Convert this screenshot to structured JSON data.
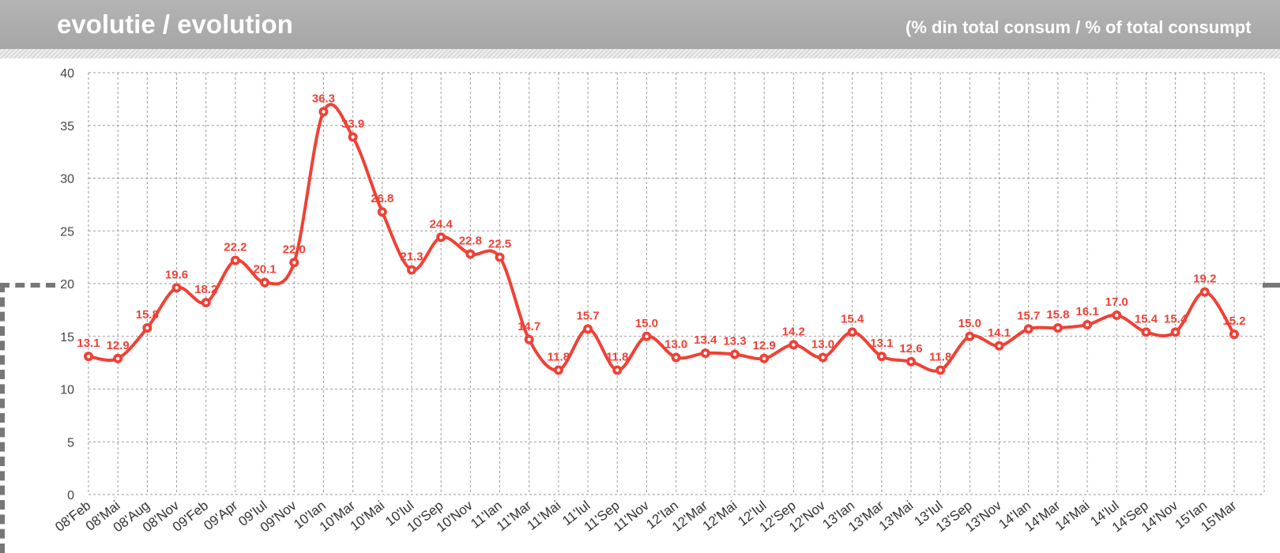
{
  "header": {
    "title": "evolutie / evolution",
    "subtitle": "(% din total consum / % of total consumpt"
  },
  "colors": {
    "header_bg": "#a9a9a9",
    "series": "#ef4136",
    "grid": "#9a9a9a"
  },
  "chart_data": {
    "type": "line",
    "title": "evolutie / evolution",
    "subtitle": "(% din total consum / % of total consumpt",
    "xlabel": "",
    "ylabel": "",
    "ylim": [
      0,
      40
    ],
    "yticks": [
      0,
      5,
      10,
      15,
      20,
      25,
      30,
      35,
      40
    ],
    "grid": true,
    "smooth": true,
    "categories": [
      "08'Feb",
      "08'Mai",
      "08'Aug",
      "08'Nov",
      "09'Feb",
      "09'Apr",
      "09'Iul",
      "09'Nov",
      "10'Ian",
      "10'Mar",
      "10'Mai",
      "10'Iul",
      "10'Sep",
      "10'Nov",
      "11'Ian",
      "11'Mar",
      "11'Mai",
      "11'Iul",
      "11'Sep",
      "11'Nov",
      "12'Ian",
      "12'Mar",
      "12'Mai",
      "12'Iul",
      "12'Sep",
      "12'Nov",
      "13'Ian",
      "13'Mar",
      "13'Mai",
      "13'Iul",
      "13'Sep",
      "13'Nov",
      "14'Ian",
      "14'Mar",
      "14'Mai",
      "14'Iul",
      "14'Sep",
      "14'Nov",
      "15'Ian",
      "15'Mar"
    ],
    "series": [
      {
        "values": [
          13.1,
          12.9,
          15.8,
          19.6,
          18.2,
          22.2,
          20.1,
          22.0,
          36.3,
          33.9,
          26.8,
          21.3,
          24.4,
          22.8,
          22.5,
          14.7,
          11.8,
          15.7,
          11.8,
          15.0,
          13.0,
          13.4,
          13.3,
          12.9,
          14.2,
          13.0,
          15.4,
          13.1,
          12.6,
          11.8,
          15.0,
          14.1,
          15.7,
          15.8,
          16.1,
          17.0,
          15.4,
          15.4,
          19.2,
          15.2
        ],
        "labels": [
          "13.1",
          "12.9",
          "15.8",
          "19.6",
          "18.2",
          "22.2",
          "20.1",
          "22.0",
          "36.3",
          "33.9",
          "26.8",
          "21.3",
          "24.4",
          "22.8",
          "22.5",
          "14.7",
          "11.8",
          "15.7",
          "11.8",
          "15.0",
          "13.0",
          "13.4",
          "13.3",
          "12.9",
          "14.2",
          "13.0",
          "15.4",
          "13.1",
          "12.6",
          "11.8",
          "15.0",
          "14.1",
          "15.7",
          "15.8",
          "16.1",
          "17.0",
          "15.4",
          "15.4",
          "19.2",
          "15.2"
        ]
      }
    ]
  }
}
